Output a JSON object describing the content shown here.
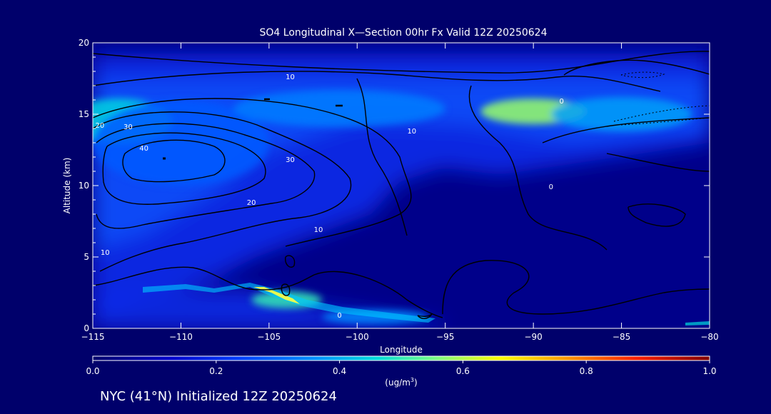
{
  "chart_data": {
    "type": "heatmap",
    "title": "SO4 Longitudinal X—Section 00hr  Fx Valid 12Z 20250624",
    "xlabel": "Longitude",
    "ylabel": "Altitude (km)",
    "xlim": [
      -115,
      -80
    ],
    "ylim": [
      0,
      20
    ],
    "x_ticks": [
      -115,
      -110,
      -105,
      -100,
      -95,
      -90,
      -85,
      -80
    ],
    "x_tick_labels": [
      "−115",
      "−110",
      "−105",
      "−100",
      "−95",
      "−90",
      "−85",
      "−80"
    ],
    "y_ticks": [
      0,
      5,
      10,
      15,
      20
    ],
    "y_tick_labels": [
      "0",
      "5",
      "10",
      "15",
      "20"
    ],
    "colorbar": {
      "min": 0.0,
      "max": 1.0,
      "ticks": [
        0.0,
        0.2,
        0.4,
        0.6,
        0.8,
        1.0
      ],
      "tick_labels": [
        "0.0",
        "0.2",
        "0.4",
        "0.6",
        "0.8",
        "1.0"
      ],
      "unit_prefix": "(ug/m",
      "unit_sup": "3",
      "unit_suffix": ")"
    },
    "contour_labels": [
      {
        "text": "10",
        "lon": -103.8,
        "alt": 17.6
      },
      {
        "text": "10",
        "lon": -96.9,
        "alt": 13.8
      },
      {
        "text": "0",
        "lon": -88.4,
        "alt": 15.9
      },
      {
        "text": "20",
        "lon": -114.6,
        "alt": 14.2
      },
      {
        "text": "30",
        "lon": -113.0,
        "alt": 14.1
      },
      {
        "text": "40",
        "lon": -112.1,
        "alt": 12.6
      },
      {
        "text": "30",
        "lon": -103.8,
        "alt": 11.8
      },
      {
        "text": "20",
        "lon": -106.0,
        "alt": 8.8
      },
      {
        "text": "10",
        "lon": -102.2,
        "alt": 6.9
      },
      {
        "text": "10",
        "lon": -114.3,
        "alt": 5.3
      },
      {
        "text": "0",
        "lon": -89.0,
        "alt": 9.9
      },
      {
        "text": "0",
        "lon": -101.0,
        "alt": 0.9
      }
    ],
    "field_blobs": [
      {
        "lon": -113.5,
        "alt": 14.5,
        "rlon": 3.0,
        "ralt": 1.6,
        "value": 0.45
      },
      {
        "lon": -110.0,
        "alt": 13.0,
        "rlon": 5.0,
        "ralt": 3.0,
        "value": 0.28
      },
      {
        "lon": -101.0,
        "alt": 15.4,
        "rlon": 6.0,
        "ralt": 1.3,
        "value": 0.33
      },
      {
        "lon": -90.0,
        "alt": 15.2,
        "rlon": 3.0,
        "ralt": 0.9,
        "value": 0.58
      },
      {
        "lon": -85.0,
        "alt": 15.0,
        "rlon": 4.0,
        "ralt": 1.2,
        "value": 0.38
      },
      {
        "lon": -104.0,
        "alt": 2.0,
        "rlon": 2.0,
        "ralt": 0.6,
        "value": 0.5
      },
      {
        "lon": -99.0,
        "alt": 0.8,
        "rlon": 3.0,
        "ralt": 0.5,
        "value": 0.35
      }
    ]
  },
  "footer": {
    "location_text": "NYC (41°N) Initialized 12Z 20250624"
  }
}
